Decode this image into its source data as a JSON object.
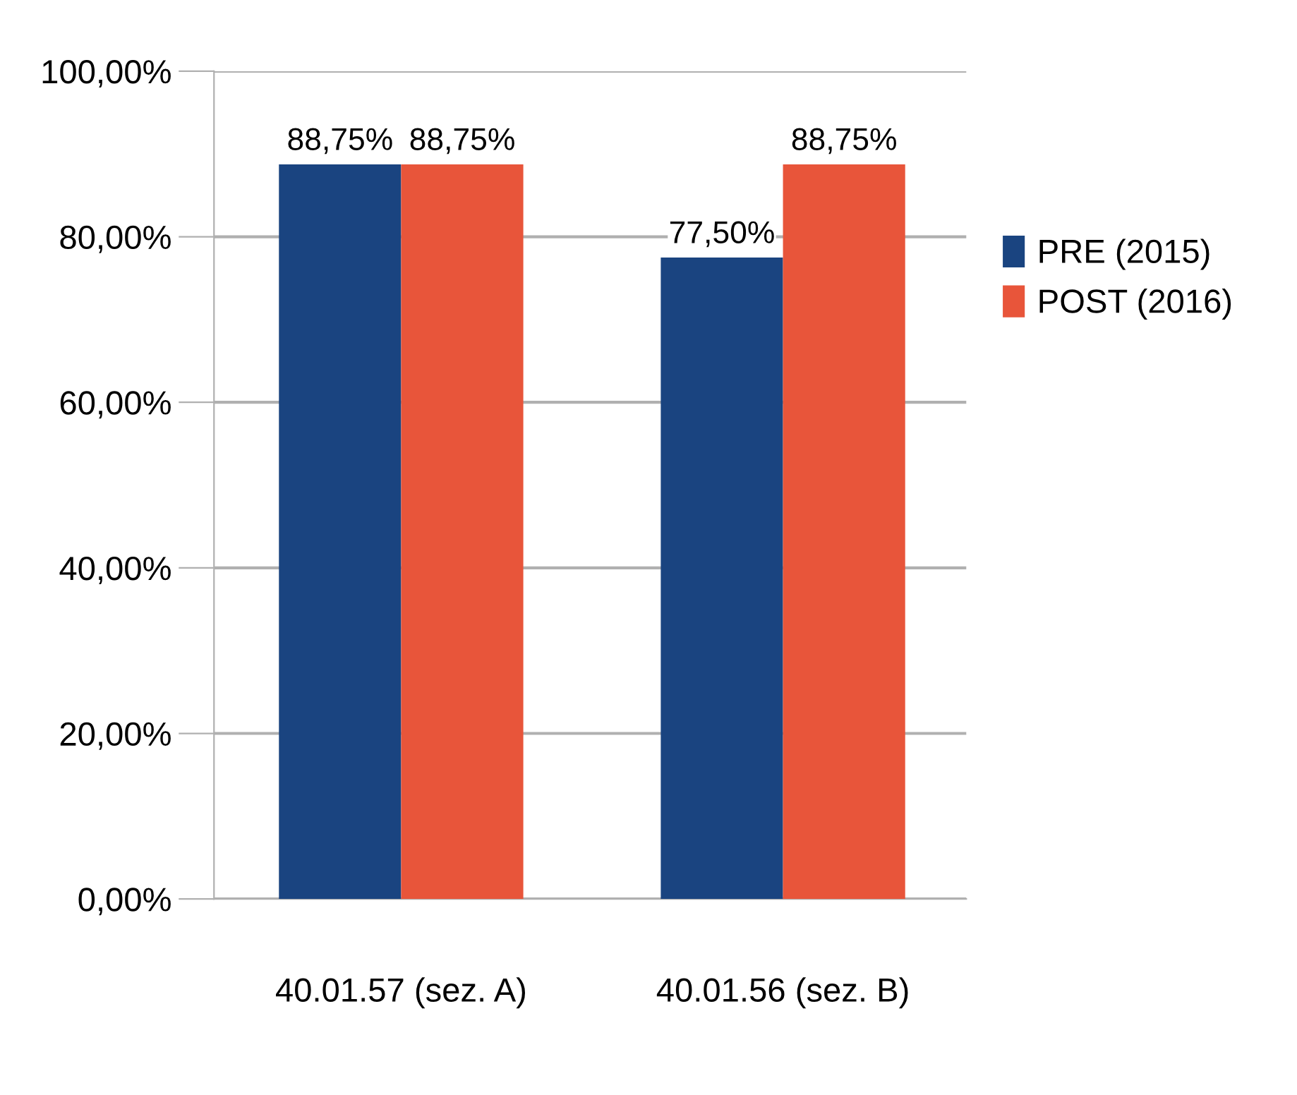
{
  "chart_data": {
    "type": "bar",
    "categories": [
      "40.01.57 (sez. A)",
      "40.01.56 (sez. B)"
    ],
    "series": [
      {
        "name": "PRE (2015)",
        "color": "#1a4480",
        "values": [
          88.75,
          77.5
        ],
        "value_labels": [
          "88,75%",
          "77,50%"
        ]
      },
      {
        "name": "POST (2016)",
        "color": "#e8553a",
        "values": [
          88.75,
          88.75
        ],
        "value_labels": [
          "88,75%",
          "88,75%"
        ]
      }
    ],
    "ylim": [
      0,
      100
    ],
    "yticks": [
      {
        "value": 0,
        "label": "0,00%"
      },
      {
        "value": 20,
        "label": "20,00%"
      },
      {
        "value": 40,
        "label": "40,00%"
      },
      {
        "value": 60,
        "label": "60,00%"
      },
      {
        "value": 80,
        "label": "80,00%"
      },
      {
        "value": 100,
        "label": "100,00%"
      }
    ],
    "grid": "y",
    "legend": "right"
  }
}
